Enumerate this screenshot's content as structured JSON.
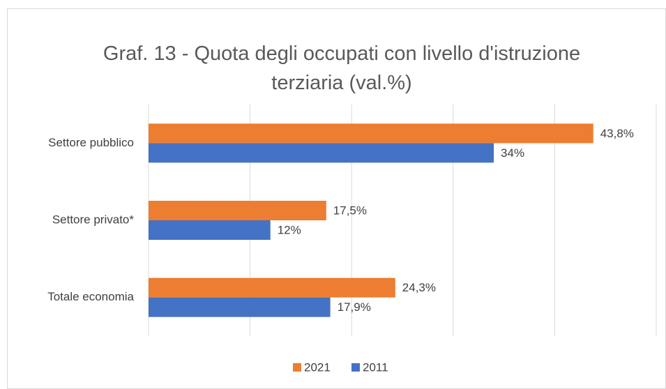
{
  "chart_data": {
    "type": "hbar",
    "title": "Graf. 13 - Quota degli occupati con livello d'istruzione terziaria (val.%)",
    "categories": [
      "Settore pubblico",
      "Settore privato*",
      "Totale economia"
    ],
    "series": [
      {
        "name": "2021",
        "color": "#ed7d31",
        "values": [
          43.8,
          17.5,
          24.3
        ],
        "value_labels": [
          "43,8%",
          "17,5%",
          "24,3%"
        ]
      },
      {
        "name": "2011",
        "color": "#4472c4",
        "values": [
          34,
          12,
          17.9
        ],
        "value_labels": [
          "34%",
          "12%",
          "17,9%"
        ]
      }
    ],
    "xlim": [
      0,
      50
    ],
    "xticks": [
      0,
      10,
      20,
      30,
      40,
      50
    ],
    "grid": true,
    "legend": "bottom"
  }
}
